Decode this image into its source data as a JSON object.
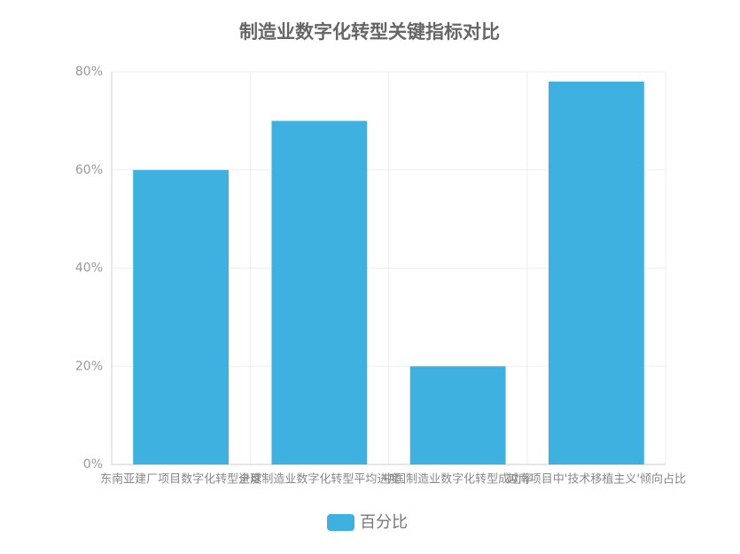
{
  "chart_data": {
    "type": "bar",
    "title": "制造业数字化转型关键指标对比",
    "categories": [
      "东南亚建厂项目数字化转型进度",
      "全球制造业数字化转型平均进度",
      "中国制造业数字化转型成功率",
      "越南项目中'技术移植主义'倾向占比"
    ],
    "series": [
      {
        "name": "百分比",
        "color": "#3eb1e0",
        "values": [
          60,
          70,
          20,
          78
        ]
      }
    ],
    "ylim": [
      0,
      80
    ],
    "yticks": [
      {
        "value": 0,
        "label": "0%"
      },
      {
        "value": 20,
        "label": "20%"
      },
      {
        "value": 40,
        "label": "40%"
      },
      {
        "value": 60,
        "label": "60%"
      },
      {
        "value": 80,
        "label": "80%"
      }
    ],
    "grid": true
  }
}
